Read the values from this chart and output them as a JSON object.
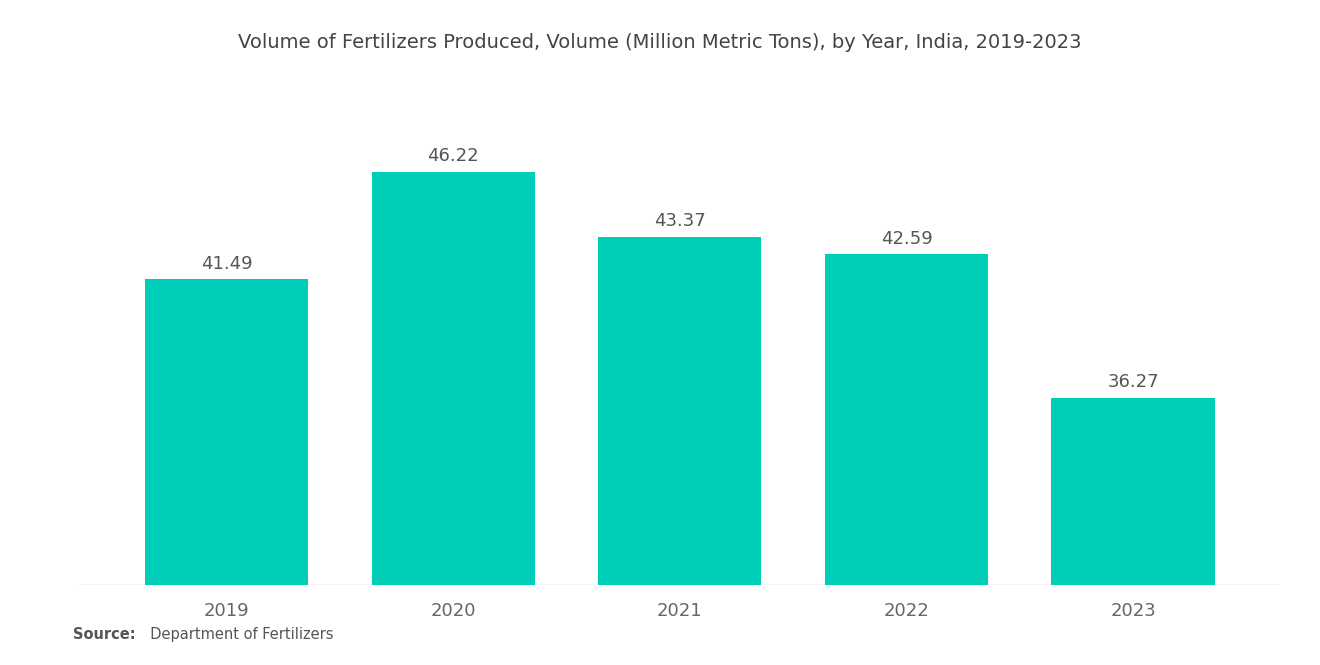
{
  "title": "Volume of Fertilizers Produced, Volume (Million Metric Tons), by Year, India, 2019-2023",
  "categories": [
    "2019",
    "2020",
    "2021",
    "2022",
    "2023"
  ],
  "values": [
    41.49,
    46.22,
    43.37,
    42.59,
    36.27
  ],
  "bar_color": "#00CDB8",
  "background_color": "#FFFFFF",
  "title_fontsize": 14,
  "label_fontsize": 13,
  "value_fontsize": 13,
  "source_bold": "Source:",
  "source_text": "  Department of Fertilizers",
  "ylim": [
    28,
    50
  ],
  "bar_width": 0.72
}
